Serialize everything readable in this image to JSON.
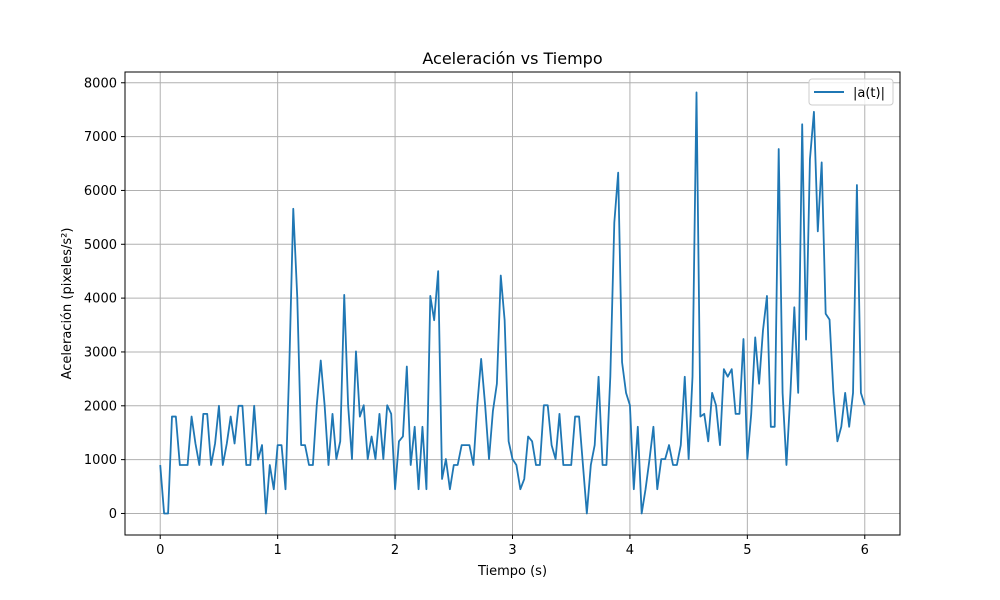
{
  "chart_data": {
    "type": "line",
    "title": "Aceleración vs Tiempo",
    "xlabel": "Tiempo (s)",
    "ylabel": "Aceleración (pixeles/s²)",
    "xlim": [
      -0.3,
      6.3
    ],
    "ylim": [
      -400,
      8200
    ],
    "xticks": [
      0,
      1,
      2,
      3,
      4,
      5,
      6
    ],
    "yticks": [
      0,
      1000,
      2000,
      3000,
      4000,
      5000,
      6000,
      7000,
      8000
    ],
    "grid": true,
    "legend_position": "top-right",
    "series": [
      {
        "name": "|a(t)|",
        "color": "#1f77b4",
        "x": [
          0.0,
          0.033,
          0.067,
          0.1,
          0.133,
          0.167,
          0.2,
          0.233,
          0.267,
          0.3,
          0.333,
          0.367,
          0.4,
          0.433,
          0.467,
          0.5,
          0.533,
          0.567,
          0.6,
          0.633,
          0.667,
          0.7,
          0.733,
          0.767,
          0.8,
          0.833,
          0.867,
          0.9,
          0.933,
          0.967,
          1.0,
          1.033,
          1.067,
          1.1,
          1.133,
          1.167,
          1.2,
          1.233,
          1.267,
          1.3,
          1.333,
          1.367,
          1.4,
          1.433,
          1.467,
          1.5,
          1.533,
          1.567,
          1.6,
          1.633,
          1.667,
          1.7,
          1.733,
          1.767,
          1.8,
          1.833,
          1.867,
          1.9,
          1.933,
          1.967,
          2.0,
          2.033,
          2.067,
          2.1,
          2.133,
          2.167,
          2.2,
          2.233,
          2.267,
          2.3,
          2.333,
          2.367,
          2.4,
          2.433,
          2.467,
          2.5,
          2.533,
          2.567,
          2.6,
          2.633,
          2.667,
          2.7,
          2.733,
          2.767,
          2.8,
          2.833,
          2.867,
          2.9,
          2.933,
          2.967,
          3.0,
          3.033,
          3.067,
          3.1,
          3.133,
          3.167,
          3.2,
          3.233,
          3.267,
          3.3,
          3.333,
          3.367,
          3.4,
          3.433,
          3.467,
          3.5,
          3.533,
          3.567,
          3.6,
          3.633,
          3.667,
          3.7,
          3.733,
          3.767,
          3.8,
          3.833,
          3.867,
          3.9,
          3.933,
          3.967,
          4.0,
          4.033,
          4.067,
          4.1,
          4.133,
          4.167,
          4.2,
          4.233,
          4.267,
          4.3,
          4.333,
          4.367,
          4.4,
          4.433,
          4.467,
          4.5,
          4.533,
          4.567,
          4.6,
          4.633,
          4.667,
          4.7,
          4.733,
          4.767,
          4.8,
          4.833,
          4.867,
          4.9,
          4.933,
          4.967,
          5.0,
          5.033,
          5.067,
          5.1,
          5.133,
          5.167,
          5.2,
          5.233,
          5.267,
          5.3,
          5.333,
          5.367,
          5.4,
          5.433,
          5.467,
          5.5,
          5.533,
          5.567,
          5.6,
          5.633,
          5.667,
          5.7,
          5.733,
          5.767,
          5.8,
          5.833,
          5.867,
          5.9,
          5.933,
          5.967,
          6.0
        ],
        "y": [
          900,
          0,
          0,
          1800,
          1800,
          900,
          900,
          900,
          1800,
          1300,
          900,
          1850,
          1850,
          900,
          1300,
          2000,
          900,
          1300,
          1800,
          1300,
          2000,
          2000,
          900,
          900,
          2000,
          1000,
          1270,
          0,
          900,
          450,
          1270,
          1270,
          450,
          2800,
          5660,
          4020,
          1270,
          1270,
          900,
          900,
          2010,
          2840,
          2010,
          900,
          1850,
          1010,
          1340,
          4060,
          2010,
          1010,
          3010,
          1800,
          2010,
          1010,
          1430,
          1010,
          1850,
          1010,
          2010,
          1850,
          450,
          1340,
          1430,
          2730,
          900,
          1610,
          450,
          1610,
          450,
          4040,
          3590,
          4500,
          640,
          1010,
          450,
          900,
          900,
          1270,
          1270,
          1270,
          900,
          2010,
          2870,
          2010,
          1010,
          1900,
          2410,
          4420,
          3590,
          1340,
          1010,
          900,
          450,
          640,
          1430,
          1340,
          900,
          900,
          2010,
          2010,
          1270,
          1010,
          1850,
          900,
          900,
          900,
          1800,
          1800,
          900,
          0,
          900,
          1270,
          2540,
          900,
          900,
          2540,
          5400,
          6330,
          2810,
          2240,
          2010,
          450,
          1610,
          0,
          450,
          1010,
          1610,
          450,
          1010,
          1010,
          1270,
          900,
          900,
          1270,
          2540,
          1010,
          2540,
          7820,
          1800,
          1850,
          1340,
          2240,
          2010,
          1270,
          2680,
          2540,
          2680,
          1850,
          1850,
          3240,
          1010,
          1850,
          3270,
          2410,
          3400,
          4040,
          1610,
          1610,
          6770,
          2240,
          900,
          2240,
          3830,
          2240,
          7230,
          3230,
          6580,
          7460,
          5240,
          6520,
          3710,
          3600,
          2240,
          1340,
          1610,
          2240,
          1610,
          2240,
          6100,
          2240,
          2010
        ]
      }
    ]
  }
}
